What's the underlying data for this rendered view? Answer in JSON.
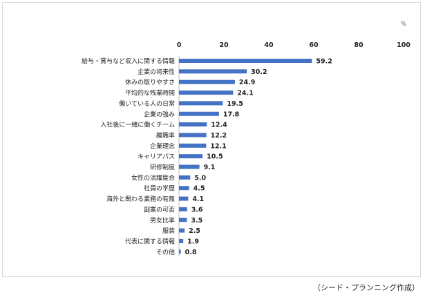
{
  "chart_data": {
    "type": "bar",
    "orientation": "horizontal",
    "unit": "%",
    "xlim": [
      0,
      100
    ],
    "xticks": [
      0,
      20,
      40,
      60,
      80,
      100
    ],
    "grid": false,
    "bar_color": "#4472c4",
    "categories": [
      "給与・賞与など収入に関する情報",
      "企業の将来性",
      "休みの取りやすさ",
      "平均的な残業時間",
      "働いている人の日常",
      "企業の強み",
      "入社後に一緒に働くチーム",
      "離職率",
      "企業理念",
      "キャリアパス",
      "研修制度",
      "女性の活躍度合",
      "社員の学歴",
      "海外と関わる業務の有無",
      "副業の可否",
      "男女比率",
      "服装",
      "代表に関する情報",
      "その他"
    ],
    "values": [
      59.2,
      30.2,
      24.9,
      24.1,
      19.5,
      17.8,
      12.4,
      12.2,
      12.1,
      10.5,
      9.1,
      5.0,
      4.5,
      4.1,
      3.6,
      3.5,
      2.5,
      1.9,
      0.8
    ]
  },
  "credit": "（シード・プランニング作成）"
}
